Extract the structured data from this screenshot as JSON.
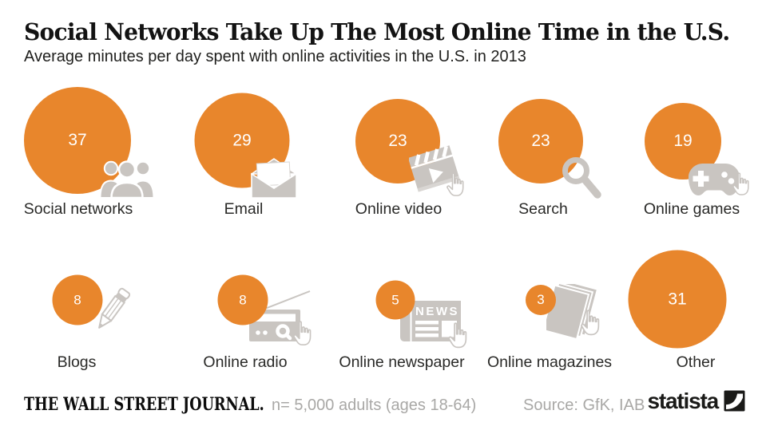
{
  "chart_data": {
    "type": "bubble",
    "title": "Social Networks Take Up The Most Online Time in the U.S.",
    "subtitle": "Average minutes per day spent with online activities in the U.S. in 2013",
    "value_unit": "minutes per day",
    "sizing": "circle area proportional to value",
    "items": [
      {
        "label": "Social networks",
        "value": 37,
        "icon": "people-icon"
      },
      {
        "label": "Email",
        "value": 29,
        "icon": "envelope-icon"
      },
      {
        "label": "Online video",
        "value": 23,
        "icon": "clapperboard-icon"
      },
      {
        "label": "Search",
        "value": 23,
        "icon": "magnifier-icon"
      },
      {
        "label": "Online games",
        "value": 19,
        "icon": "gamepad-icon"
      },
      {
        "label": "Blogs",
        "value": 8,
        "icon": "pencil-icon"
      },
      {
        "label": "Online radio",
        "value": 8,
        "icon": "radio-icon"
      },
      {
        "label": "Online newspaper",
        "value": 5,
        "icon": "newspaper-icon"
      },
      {
        "label": "Online magazines",
        "value": 3,
        "icon": "magazines-icon"
      },
      {
        "label": "Other",
        "value": 31,
        "icon": null
      }
    ]
  },
  "icons": {
    "newspaper_banner_text": "NEWS"
  },
  "footer": {
    "wsj_logo_text": "THE WALL STREET JOURNAL.",
    "sample_note": "n= 5,000 adults (ages 18-64)",
    "source": "Source: GfK, IAB",
    "statista_logo_text": "statista"
  },
  "colors": {
    "bubble_orange": "#e8862c",
    "icon_gray": "#c9c5c1",
    "footer_gray": "#a9a8a6",
    "label_dark": "#2a2a28",
    "title_black": "#131313",
    "statista_black": "#1a1a18"
  }
}
